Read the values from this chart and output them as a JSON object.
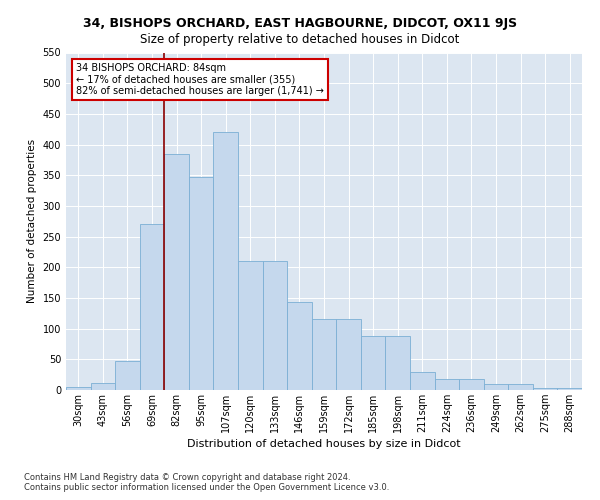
{
  "title": "34, BISHOPS ORCHARD, EAST HAGBOURNE, DIDCOT, OX11 9JS",
  "subtitle": "Size of property relative to detached houses in Didcot",
  "xlabel": "Distribution of detached houses by size in Didcot",
  "ylabel": "Number of detached properties",
  "categories": [
    "30sqm",
    "43sqm",
    "56sqm",
    "69sqm",
    "82sqm",
    "95sqm",
    "107sqm",
    "120sqm",
    "133sqm",
    "146sqm",
    "159sqm",
    "172sqm",
    "185sqm",
    "198sqm",
    "211sqm",
    "224sqm",
    "236sqm",
    "249sqm",
    "262sqm",
    "275sqm",
    "288sqm"
  ],
  "values": [
    5,
    12,
    48,
    270,
    385,
    347,
    420,
    210,
    210,
    143,
    115,
    115,
    88,
    88,
    30,
    18,
    18,
    10,
    10,
    3,
    3
  ],
  "bar_color": "#c5d8ed",
  "bar_edge_color": "#7bafd4",
  "bg_color": "#dce6f1",
  "vline_x_index": 4,
  "vline_color": "#8b0000",
  "annotation_text": "34 BISHOPS ORCHARD: 84sqm\n← 17% of detached houses are smaller (355)\n82% of semi-detached houses are larger (1,741) →",
  "annotation_box_color": "white",
  "annotation_box_edge": "#cc0000",
  "footer": "Contains HM Land Registry data © Crown copyright and database right 2024.\nContains public sector information licensed under the Open Government Licence v3.0.",
  "ylim": [
    0,
    550
  ],
  "yticks": [
    0,
    50,
    100,
    150,
    200,
    250,
    300,
    350,
    400,
    450,
    500,
    550
  ],
  "title_fontsize": 9,
  "subtitle_fontsize": 8.5,
  "xlabel_fontsize": 8,
  "ylabel_fontsize": 7.5,
  "tick_fontsize": 7,
  "annotation_fontsize": 7,
  "footer_fontsize": 6
}
